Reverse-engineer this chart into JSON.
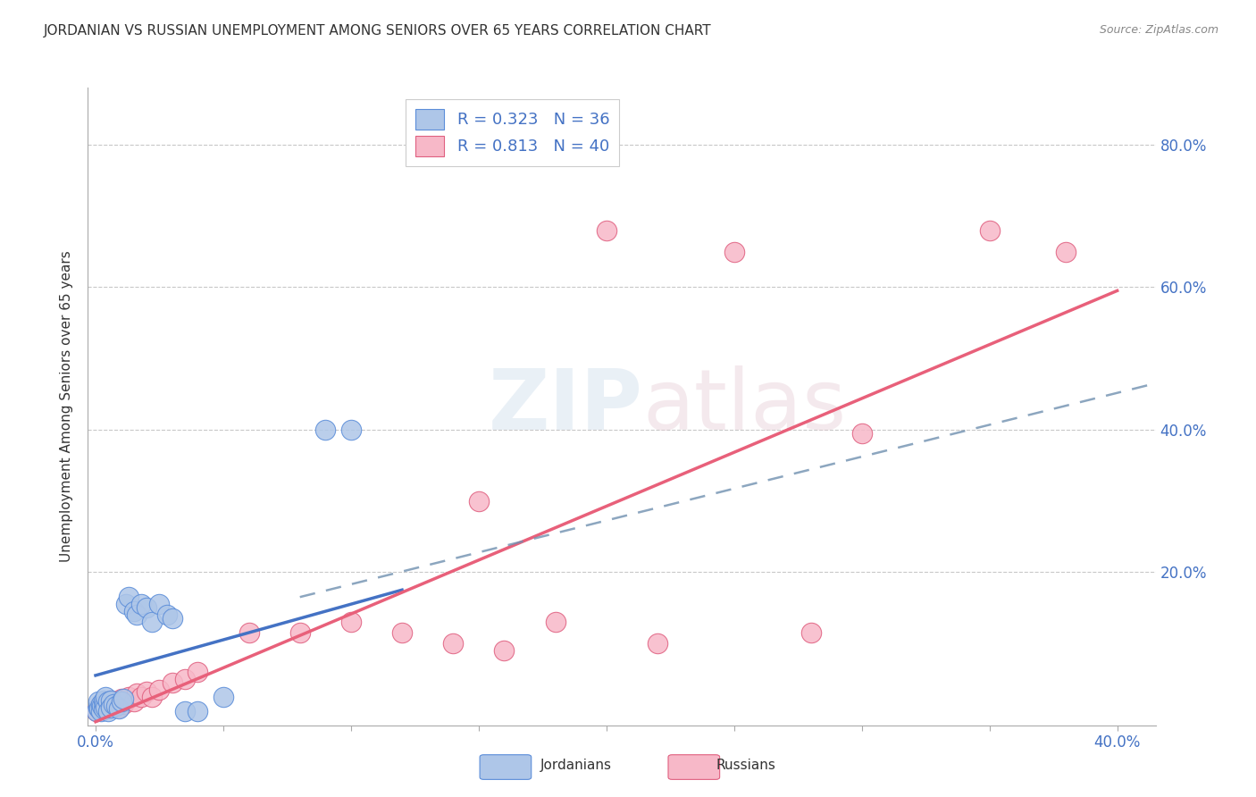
{
  "title": "JORDANIAN VS RUSSIAN UNEMPLOYMENT AMONG SENIORS OVER 65 YEARS CORRELATION CHART",
  "source": "Source: ZipAtlas.com",
  "ylabel": "Unemployment Among Seniors over 65 years",
  "xlim": [
    -0.003,
    0.415
  ],
  "ylim": [
    -0.015,
    0.88
  ],
  "background_color": "#ffffff",
  "grid_color": "#c8c8c8",
  "jordanian_fill_color": "#aec6e8",
  "jordanian_edge_color": "#5b8dd9",
  "russian_fill_color": "#f7b8c8",
  "russian_edge_color": "#e06080",
  "jordanian_line_color": "#4472c4",
  "russian_line_color": "#e8607a",
  "dashed_line_color": "#7090b0",
  "legend_jordan_R": "0.323",
  "legend_jordan_N": "36",
  "legend_russian_R": "0.813",
  "legend_russian_N": "40",
  "watermark_zip": "ZIP",
  "watermark_atlas": "atlas",
  "x_tick_positions": [
    0.0,
    0.05,
    0.1,
    0.15,
    0.2,
    0.25,
    0.3,
    0.35,
    0.4
  ],
  "x_tick_labels": [
    "0.0%",
    "",
    "",
    "",
    "",
    "",
    "",
    "",
    "40.0%"
  ],
  "y_tick_positions": [
    0.0,
    0.2,
    0.4,
    0.6,
    0.8
  ],
  "y_tick_labels_right": [
    "",
    "20.0%",
    "40.0%",
    "60.0%",
    "80.0%"
  ],
  "jordanians_x": [
    0.0005,
    0.001,
    0.001,
    0.0015,
    0.002,
    0.002,
    0.0025,
    0.003,
    0.003,
    0.0035,
    0.004,
    0.004,
    0.005,
    0.005,
    0.006,
    0.006,
    0.007,
    0.008,
    0.009,
    0.01,
    0.011,
    0.012,
    0.013,
    0.015,
    0.016,
    0.018,
    0.02,
    0.022,
    0.025,
    0.028,
    0.03,
    0.035,
    0.04,
    0.05,
    0.09,
    0.1
  ],
  "jordanians_y": [
    0.005,
    0.01,
    0.018,
    0.008,
    0.015,
    0.005,
    0.012,
    0.02,
    0.008,
    0.015,
    0.01,
    0.025,
    0.018,
    0.005,
    0.02,
    0.01,
    0.015,
    0.012,
    0.008,
    0.018,
    0.022,
    0.155,
    0.165,
    0.145,
    0.14,
    0.155,
    0.15,
    0.13,
    0.155,
    0.14,
    0.135,
    0.005,
    0.005,
    0.025,
    0.4,
    0.4
  ],
  "russians_x": [
    0.0005,
    0.001,
    0.0015,
    0.002,
    0.0025,
    0.003,
    0.004,
    0.005,
    0.006,
    0.007,
    0.008,
    0.009,
    0.01,
    0.011,
    0.012,
    0.013,
    0.015,
    0.016,
    0.018,
    0.02,
    0.022,
    0.025,
    0.03,
    0.035,
    0.04,
    0.06,
    0.08,
    0.1,
    0.12,
    0.14,
    0.15,
    0.16,
    0.18,
    0.2,
    0.22,
    0.25,
    0.28,
    0.3,
    0.35,
    0.38
  ],
  "russians_y": [
    0.005,
    0.01,
    0.008,
    0.012,
    0.015,
    0.018,
    0.008,
    0.015,
    0.02,
    0.012,
    0.018,
    0.01,
    0.022,
    0.015,
    0.02,
    0.025,
    0.018,
    0.03,
    0.025,
    0.032,
    0.025,
    0.035,
    0.045,
    0.05,
    0.06,
    0.115,
    0.115,
    0.13,
    0.115,
    0.1,
    0.3,
    0.09,
    0.13,
    0.68,
    0.1,
    0.65,
    0.115,
    0.395,
    0.68,
    0.65
  ],
  "jordan_line_x0": 0.0,
  "jordan_line_x1": 0.12,
  "jordan_line_y0": 0.055,
  "jordan_line_y1": 0.175,
  "russian_line_x0": 0.0,
  "russian_line_x1": 0.4,
  "russian_line_y0": -0.01,
  "russian_line_y1": 0.595,
  "dashed_line_x0": 0.08,
  "dashed_line_x1": 0.415,
  "dashed_line_y0": 0.165,
  "dashed_line_y1": 0.465
}
